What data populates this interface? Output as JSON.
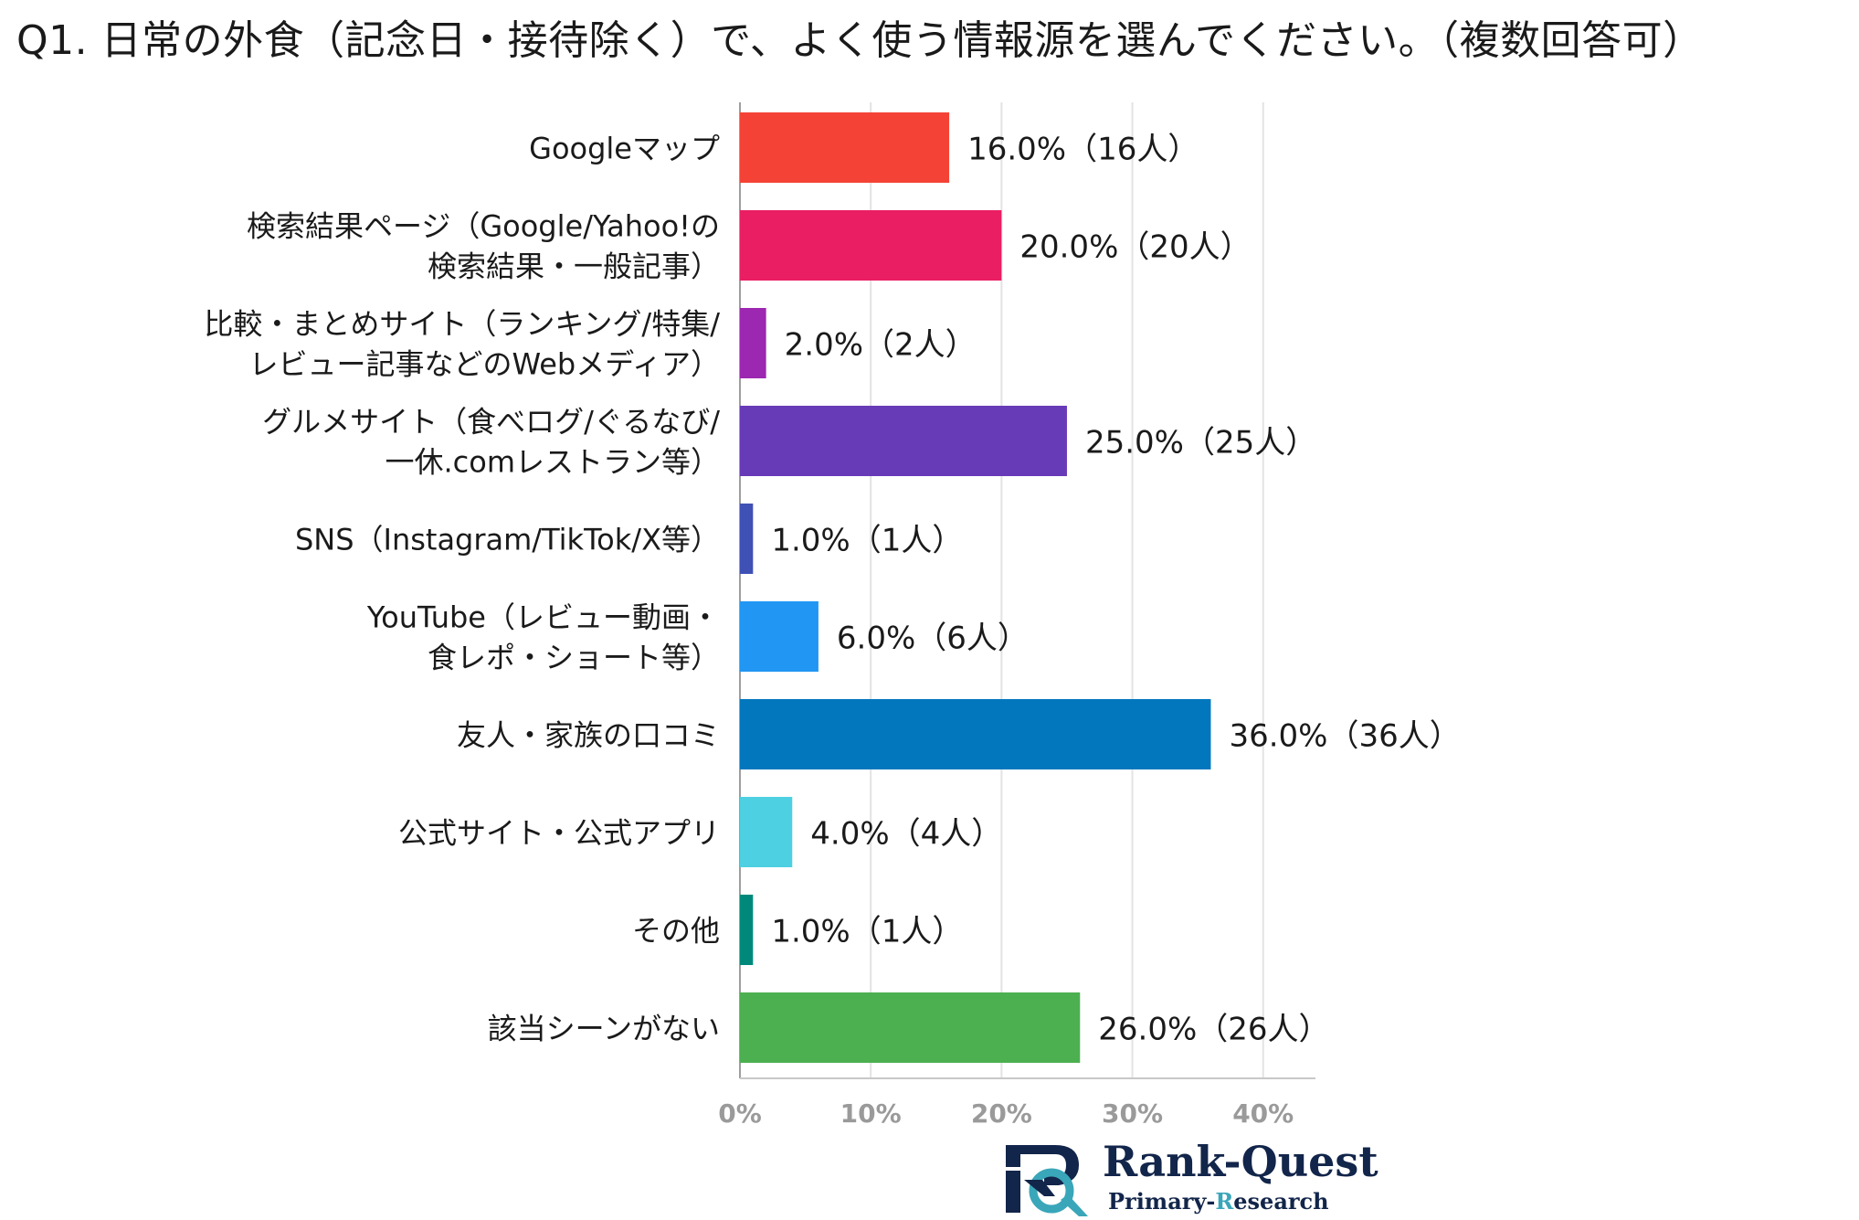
{
  "title": "Q1. 日常の外食（記念日・接待除く）で、よく使う情報源を選んでください。（複数回答可）",
  "chart_data": {
    "type": "bar",
    "orientation": "horizontal",
    "categories": [
      [
        "Googleマップ"
      ],
      [
        "検索結果ページ（Google/Yahoo!の",
        "検索結果・一般記事）"
      ],
      [
        "比較・まとめサイト（ランキング/特集/",
        "レビュー記事などのWebメディア）"
      ],
      [
        "グルメサイト（食べログ/ぐるなび/",
        "一休.comレストラン等）"
      ],
      [
        "SNS（Instagram/TikTok/X等）"
      ],
      [
        "YouTube（レビュー動画・",
        "食レポ・ショート等）"
      ],
      [
        "友人・家族の口コミ"
      ],
      [
        "公式サイト・公式アプリ"
      ],
      [
        "その他"
      ],
      [
        "該当シーンがない"
      ]
    ],
    "values": [
      16.0,
      20.0,
      2.0,
      25.0,
      1.0,
      6.0,
      36.0,
      4.0,
      1.0,
      26.0
    ],
    "data_labels": [
      "16.0%（16人）",
      "20.0%（20人）",
      "2.0%（2人）",
      "25.0%（25人）",
      "1.0%（1人）",
      "6.0%（6人）",
      "36.0%（36人）",
      "4.0%（4人）",
      "1.0%（1人）",
      "26.0%（26人）"
    ],
    "colors": [
      "#f44336",
      "#e91e63",
      "#9c27b0",
      "#673ab7",
      "#3f51b5",
      "#2196f3",
      "#0277bd",
      "#4dd0e1",
      "#00897b",
      "#4caf50"
    ],
    "xlim": [
      0,
      44
    ],
    "x_ticks": [
      0,
      10,
      20,
      30,
      40
    ],
    "x_tick_labels": [
      "0%",
      "10%",
      "20%",
      "30%",
      "40%"
    ],
    "grid": true,
    "legend": "none"
  },
  "logo": {
    "name": "Rank-Quest",
    "sub_prefix": "Primary-",
    "sub_highlight": "R",
    "sub_suffix": "esearch",
    "colors": {
      "navy": "#12254a",
      "teal": "#3aa6b9"
    }
  }
}
